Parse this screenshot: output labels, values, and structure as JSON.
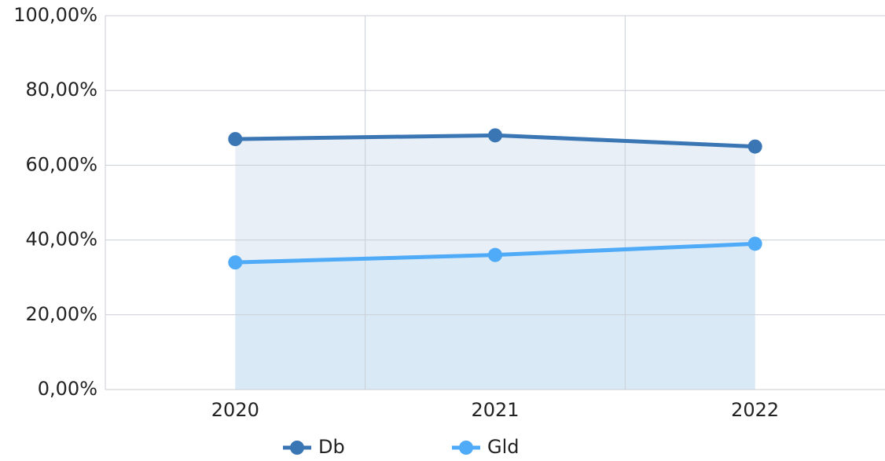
{
  "chart_data": {
    "type": "line",
    "categories": [
      "2020",
      "2021",
      "2022"
    ],
    "series": [
      {
        "name": "Db",
        "color": "#3b76b4",
        "area_color": "#e9eff7",
        "values": [
          67,
          68,
          65
        ]
      },
      {
        "name": "Gld",
        "color": "#4faaf7",
        "area_color": "#d9eaf6",
        "values": [
          34,
          36,
          39
        ]
      }
    ],
    "ylim": [
      0,
      100
    ],
    "yticks": [
      {
        "value": 0,
        "label": "0,00%"
      },
      {
        "value": 20,
        "label": "20,00%"
      },
      {
        "value": 40,
        "label": "40,00%"
      },
      {
        "value": 60,
        "label": "60,00%"
      },
      {
        "value": 80,
        "label": "80,00%"
      },
      {
        "value": 100,
        "label": "100,00%"
      }
    ],
    "grid": true,
    "legend": "bottom"
  }
}
